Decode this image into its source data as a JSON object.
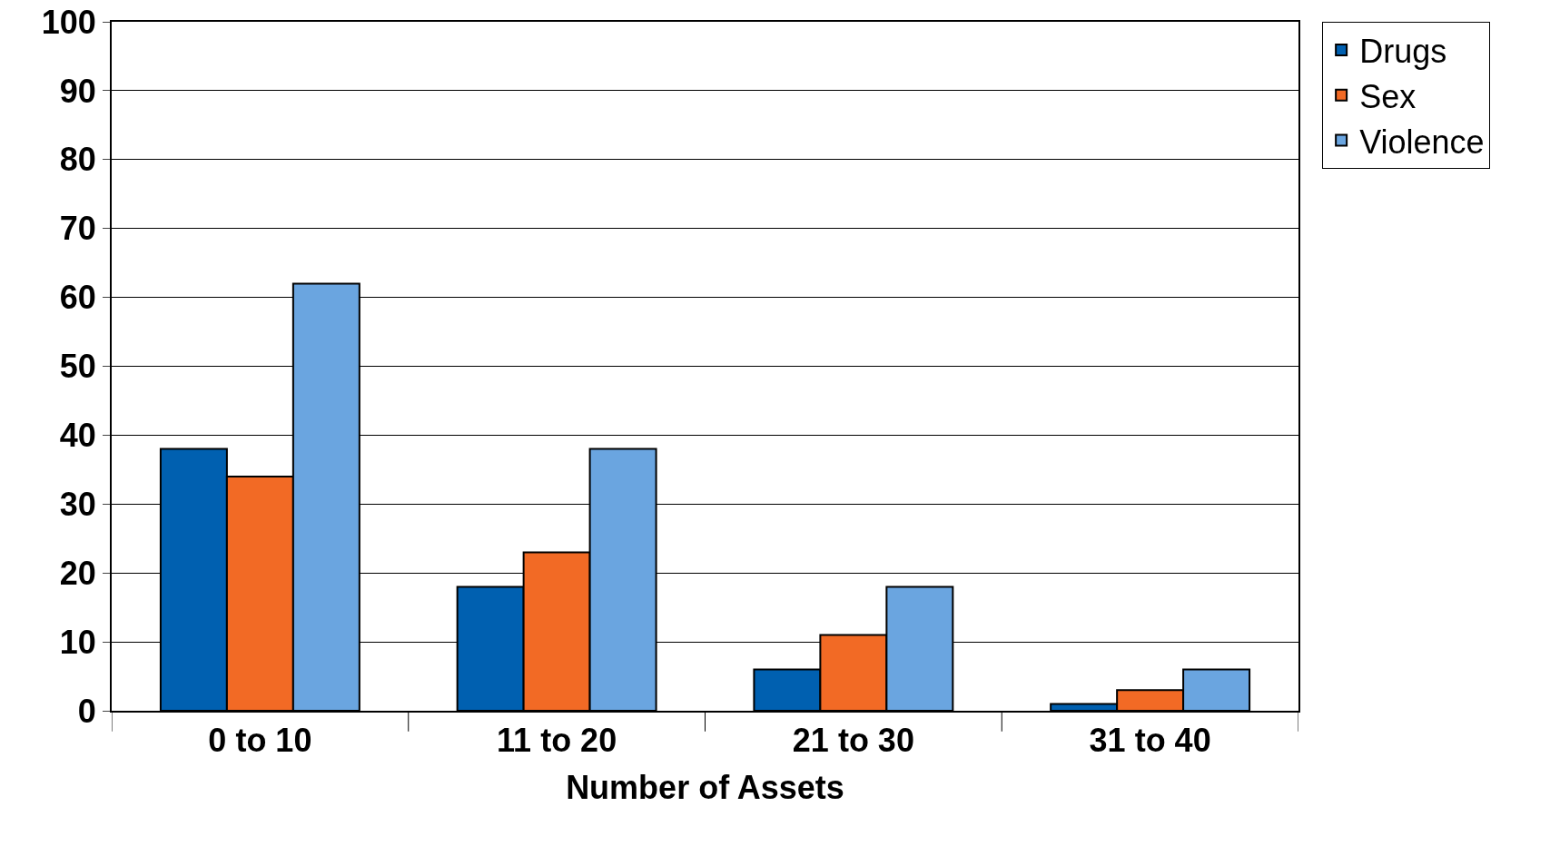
{
  "chart_data": {
    "type": "bar",
    "xlabel": "Number of Assets",
    "categories": [
      "0 to 10",
      "11 to 20",
      "21 to 30",
      "31 to 40"
    ],
    "series": [
      {
        "name": "Drugs",
        "color": "#0060b0",
        "values": [
          38,
          18,
          6,
          1
        ]
      },
      {
        "name": "Sex",
        "color": "#f26a25",
        "values": [
          34,
          23,
          11,
          3
        ]
      },
      {
        "name": "Violence",
        "color": "#6aa5e0",
        "values": [
          62,
          38,
          18,
          6
        ]
      }
    ],
    "ylim": [
      0,
      100
    ],
    "yticks": [
      0,
      10,
      20,
      30,
      40,
      50,
      60,
      70,
      80,
      90,
      100
    ],
    "grid": "y",
    "legend": "top right"
  }
}
